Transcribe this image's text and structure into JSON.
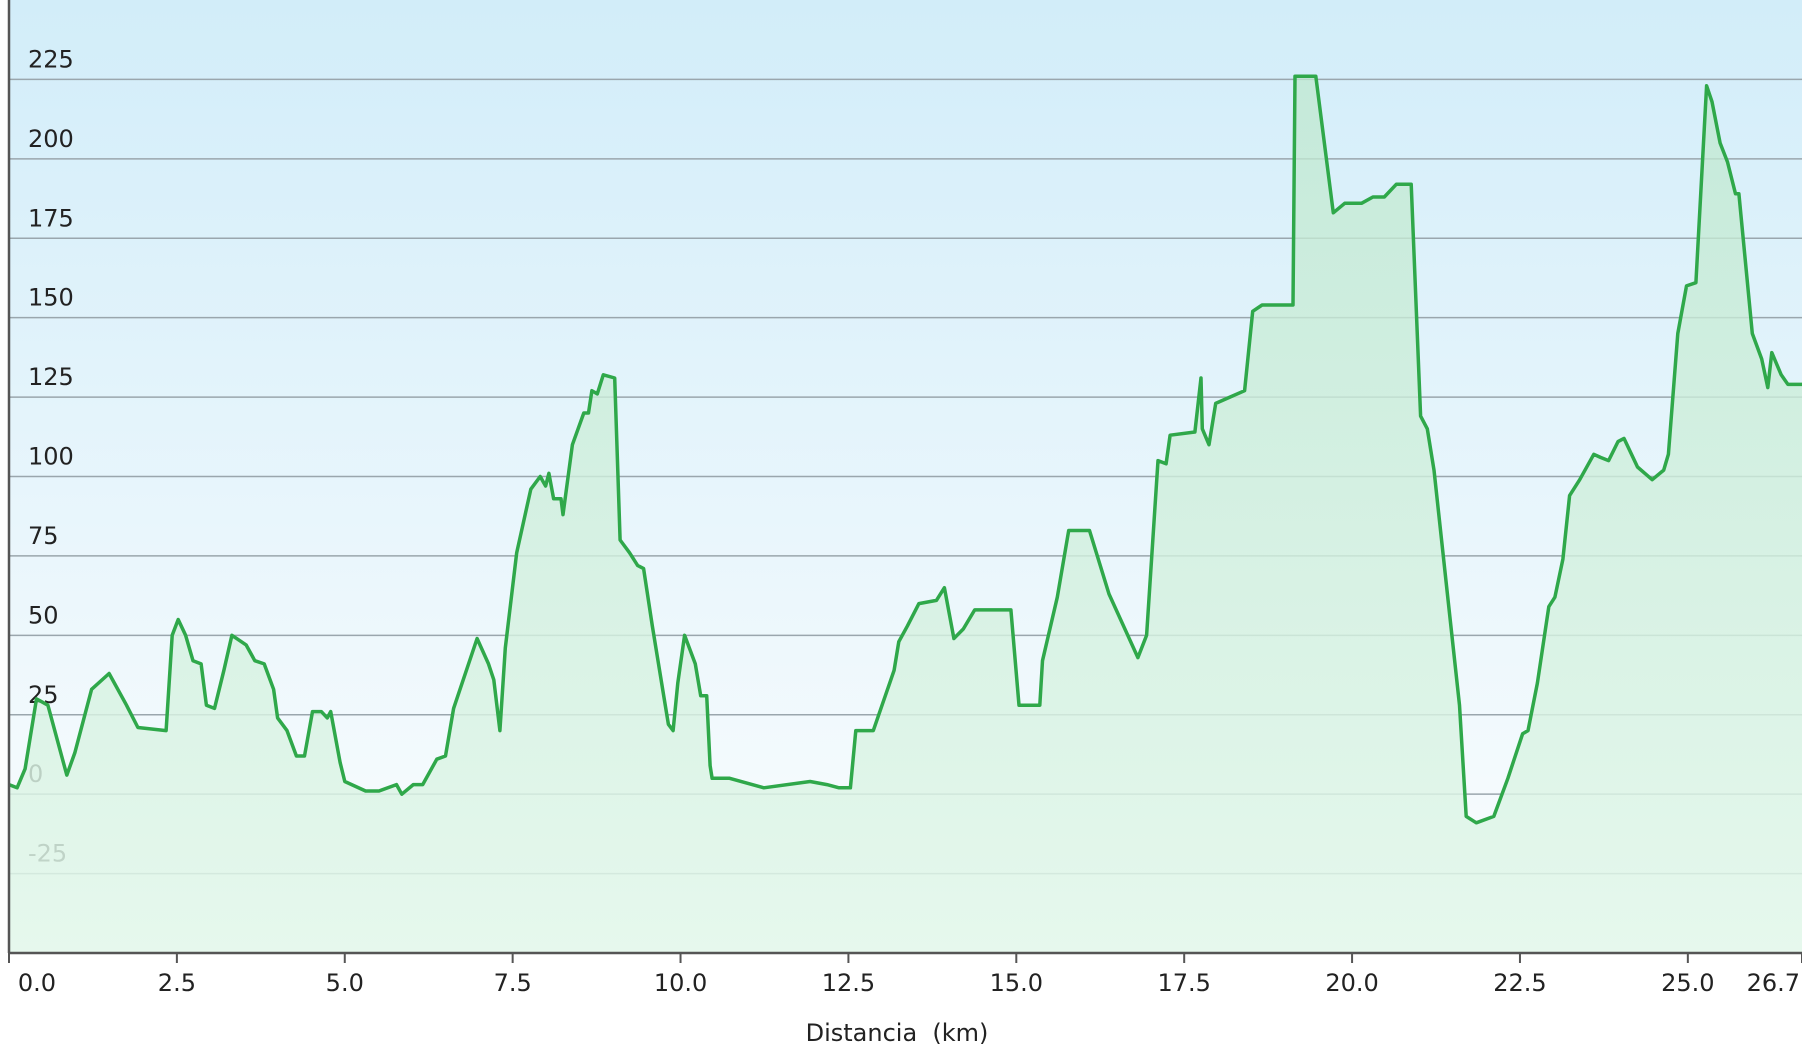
{
  "chart_data": {
    "type": "area",
    "x_label": "Distancia  (km)",
    "color": "#2fa84a",
    "grid": true,
    "xlim": [
      0,
      26.7
    ],
    "ylim": [
      -50,
      250
    ],
    "xticks": [
      {
        "value": 0,
        "label": "0.0"
      },
      2.5,
      {
        "value": 5,
        "label": "5.0"
      },
      7.5,
      {
        "value": 10,
        "label": "10.0"
      },
      12.5,
      {
        "value": 15,
        "label": "15.0"
      },
      17.5,
      {
        "value": 20,
        "label": "20.0"
      },
      22.5,
      {
        "value": 25,
        "label": "25.0"
      },
      26.7
    ],
    "yticks": [
      -25,
      0,
      25,
      50,
      75,
      100,
      125,
      150,
      175,
      200,
      225
    ],
    "x": [
      0.0,
      0.12,
      0.24,
      0.41,
      0.58,
      0.86,
      0.98,
      1.23,
      1.49,
      1.75,
      1.92,
      2.34,
      2.43,
      2.52,
      2.63,
      2.74,
      2.86,
      2.94,
      3.06,
      3.2,
      3.32,
      3.53,
      3.66,
      3.8,
      3.94,
      4.0,
      4.14,
      4.28,
      4.4,
      4.52,
      4.65,
      4.74,
      4.79,
      4.93,
      5.0,
      5.31,
      5.51,
      5.77,
      5.85,
      6.02,
      6.16,
      6.37,
      6.5,
      6.62,
      6.97,
      7.14,
      7.22,
      7.31,
      7.39,
      7.56,
      7.77,
      7.91,
      7.99,
      8.04,
      8.11,
      8.22,
      8.25,
      8.39,
      8.56,
      8.63,
      8.68,
      8.76,
      8.85,
      9.02,
      9.1,
      9.24,
      9.36,
      9.45,
      9.58,
      9.75,
      9.82,
      9.89,
      9.96,
      10.06,
      10.22,
      10.3,
      10.39,
      10.44,
      10.47,
      10.73,
      11.24,
      11.93,
      12.18,
      12.36,
      12.53,
      12.61,
      12.87,
      13.18,
      13.25,
      13.38,
      13.55,
      13.81,
      13.93,
      14.07,
      14.21,
      14.38,
      14.92,
      15.04,
      15.35,
      15.39,
      15.61,
      15.78,
      16.09,
      16.38,
      16.81,
      16.94,
      17.11,
      17.23,
      17.29,
      17.66,
      17.75,
      17.77,
      17.87,
      17.97,
      18.18,
      18.4,
      18.52,
      18.66,
      19.12,
      19.15,
      19.46,
      19.72,
      19.89,
      20.14,
      20.31,
      20.48,
      20.66,
      20.88,
      21.02,
      21.12,
      21.22,
      21.43,
      21.6,
      21.7,
      21.85,
      22.11,
      22.32,
      22.54,
      22.62,
      22.76,
      22.93,
      23.02,
      23.14,
      23.24,
      23.39,
      23.6,
      23.7,
      23.82,
      23.96,
      24.05,
      24.25,
      24.47,
      24.64,
      24.71,
      24.85,
      24.98,
      25.12,
      25.28,
      25.36,
      25.48,
      25.59,
      25.71,
      25.76,
      25.96,
      26.1,
      26.19,
      26.25,
      26.39,
      26.49,
      26.7
    ],
    "values": [
      3,
      2,
      8,
      30,
      28,
      6,
      13,
      33,
      38,
      28,
      21,
      20,
      50,
      55,
      50,
      42,
      41,
      28,
      27,
      39,
      50,
      47,
      42,
      41,
      33,
      24,
      20,
      12,
      12,
      26,
      26,
      24,
      26,
      10,
      4,
      1,
      1,
      3,
      0,
      3,
      3,
      11,
      12,
      27,
      49,
      41,
      36,
      20,
      46,
      76,
      96,
      100,
      97,
      101,
      93,
      93,
      88,
      110,
      120,
      120,
      127,
      126,
      132,
      131,
      80,
      76,
      72,
      71,
      53,
      31,
      22,
      20,
      35,
      50,
      41,
      31,
      31,
      9,
      5,
      5,
      2,
      4,
      3,
      2,
      2,
      20,
      20,
      39,
      48,
      53,
      60,
      61,
      65,
      49,
      52,
      58,
      58,
      28,
      28,
      42,
      62,
      83,
      83,
      63,
      43,
      50,
      105,
      104,
      113,
      114,
      131,
      115,
      110,
      123,
      125,
      127,
      152,
      154,
      154,
      226,
      226,
      183,
      186,
      186,
      188,
      188,
      192,
      192,
      119,
      115,
      102,
      61,
      28,
      -7,
      -9,
      -7,
      5,
      19,
      20,
      35,
      59,
      62,
      74,
      94,
      99,
      107,
      106,
      105,
      111,
      112,
      103,
      99,
      102,
      107,
      145,
      160,
      161,
      223,
      218,
      205,
      199,
      189,
      189,
      145,
      137,
      128,
      139,
      132,
      129,
      129
    ]
  }
}
